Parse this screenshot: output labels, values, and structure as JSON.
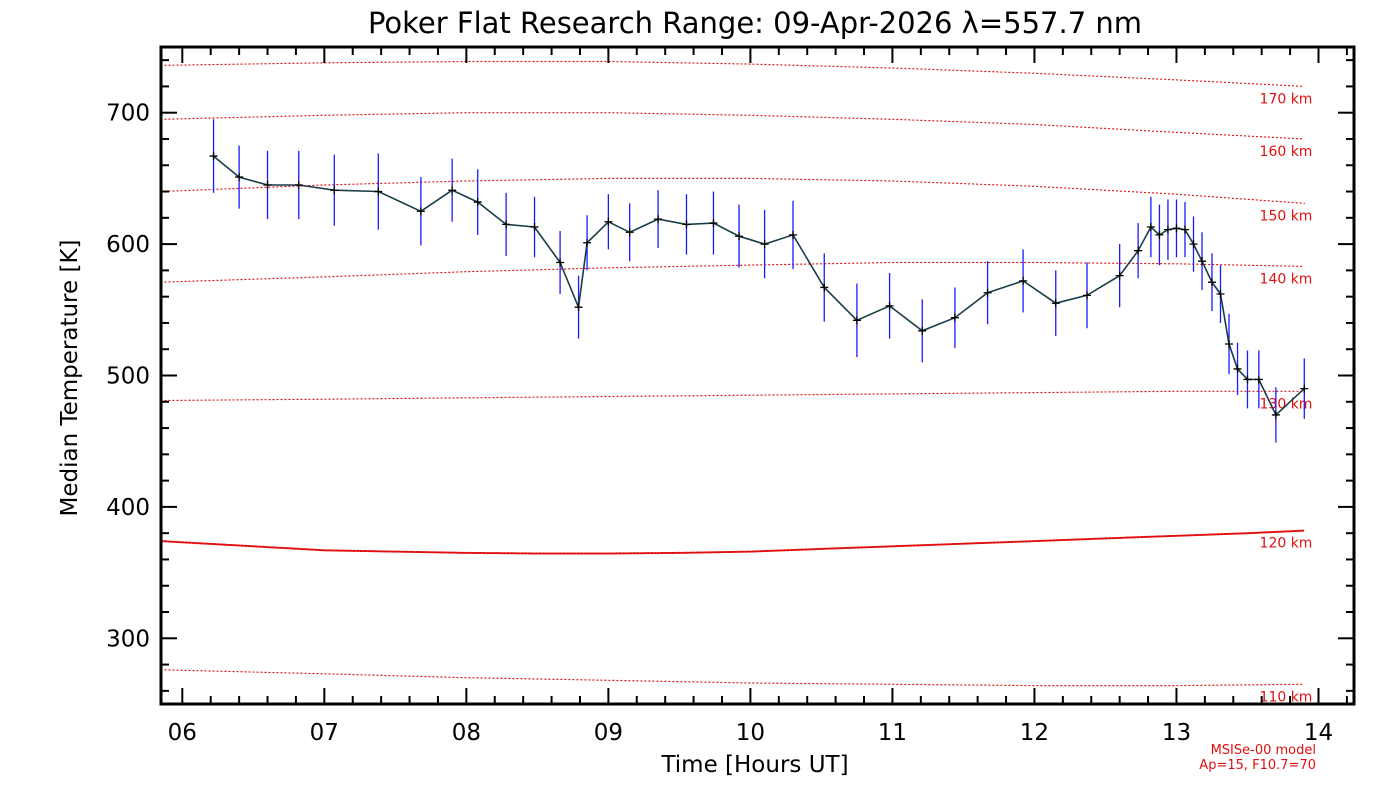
{
  "chart_data": {
    "type": "line",
    "title": "Poker Flat Research Range: 09-Apr-2026 λ=557.7 nm",
    "xlabel": "Time [Hours UT]",
    "ylabel": "Median Temperature [K]",
    "xlim": [
      5.85,
      14.25
    ],
    "ylim": [
      250,
      750
    ],
    "x_ticks": [
      6,
      7,
      8,
      9,
      10,
      11,
      12,
      13,
      14
    ],
    "x_tick_labels": [
      "06",
      "07",
      "08",
      "09",
      "10",
      "11",
      "12",
      "13",
      "14"
    ],
    "y_ticks": [
      300,
      400,
      500,
      600,
      700
    ],
    "y_tick_labels": [
      "300",
      "400",
      "500",
      "600",
      "700"
    ],
    "series": [
      {
        "name": "Median Temperature",
        "color": "#1a3d4a",
        "errorbar_color": "#1a1aff",
        "x": [
          6.22,
          6.4,
          6.6,
          6.82,
          7.07,
          7.38,
          7.68,
          7.9,
          8.08,
          8.28,
          8.48,
          8.66,
          8.79,
          8.85,
          9.0,
          9.15,
          9.35,
          9.55,
          9.74,
          9.92,
          10.1,
          10.3,
          10.52,
          10.75,
          10.98,
          11.21,
          11.44,
          11.67,
          11.92,
          12.15,
          12.37,
          12.6,
          12.73,
          12.82,
          12.88,
          12.94,
          13.0,
          13.06,
          13.12,
          13.18,
          13.25,
          13.31,
          13.37,
          13.43,
          13.5,
          13.58,
          13.7,
          13.9
        ],
        "y": [
          667,
          651,
          645,
          645,
          641,
          640,
          625,
          641,
          632,
          615,
          613,
          586,
          552,
          601,
          617,
          609,
          619,
          615,
          616,
          606,
          600,
          607,
          567,
          542,
          553,
          534,
          544,
          563,
          572,
          555,
          561,
          576,
          595,
          613,
          607,
          611,
          612,
          611,
          600,
          587,
          571,
          562,
          524,
          505,
          497,
          497,
          470,
          490
        ],
        "errors": [
          28,
          24,
          26,
          26,
          27,
          29,
          26,
          24,
          25,
          24,
          23,
          24,
          24,
          21,
          21,
          22,
          22,
          23,
          24,
          24,
          26,
          26,
          26,
          28,
          25,
          24,
          23,
          24,
          24,
          25,
          25,
          24,
          21,
          23,
          23,
          23,
          22,
          21,
          21,
          22,
          22,
          22,
          23,
          20,
          22,
          22,
          21,
          23
        ]
      }
    ],
    "model_curves": [
      {
        "name": "110 km",
        "label": "110 km",
        "x": [
          5.85,
          7.0,
          8.0,
          9.0,
          10.0,
          11.0,
          12.0,
          13.0,
          13.9
        ],
        "y": [
          276,
          273,
          270,
          268,
          266,
          265,
          264,
          264,
          265
        ],
        "dense": false
      },
      {
        "name": "120 km",
        "label": "120 km",
        "x": [
          5.85,
          6.5,
          7.0,
          7.5,
          8.0,
          8.5,
          9.0,
          9.5,
          10.0,
          10.5,
          11.0,
          11.5,
          12.0,
          12.5,
          13.0,
          13.5,
          13.9
        ],
        "y": [
          374,
          370,
          367,
          366,
          365,
          364.5,
          364.5,
          365,
          366,
          368,
          370,
          372,
          374,
          376,
          378,
          380,
          382
        ],
        "dense": true
      },
      {
        "name": "130 km",
        "label": "130 km",
        "x": [
          5.85,
          7.0,
          8.0,
          9.0,
          10.0,
          11.0,
          12.0,
          13.0,
          13.9
        ],
        "y": [
          481,
          482,
          483,
          484,
          485,
          486,
          487,
          488,
          488
        ],
        "dense": false
      },
      {
        "name": "140 km",
        "label": "140 km",
        "x": [
          5.85,
          7.0,
          8.0,
          9.0,
          10.0,
          11.0,
          12.0,
          13.0,
          13.9
        ],
        "y": [
          571,
          575,
          579,
          582,
          584,
          586,
          586,
          585,
          583
        ],
        "dense": false
      },
      {
        "name": "150 km",
        "label": "150 km",
        "x": [
          5.85,
          7.0,
          8.0,
          9.0,
          10.0,
          11.0,
          12.0,
          13.0,
          13.9
        ],
        "y": [
          640,
          645,
          648,
          650,
          650,
          648,
          644,
          638,
          631
        ],
        "dense": false
      },
      {
        "name": "160 km",
        "label": "160 km",
        "x": [
          5.85,
          7.0,
          8.0,
          9.0,
          10.0,
          11.0,
          12.0,
          13.0,
          13.9
        ],
        "y": [
          695,
          698,
          700,
          700,
          698,
          695,
          691,
          685,
          680
        ],
        "dense": false
      },
      {
        "name": "170 km",
        "label": "170 km",
        "x": [
          5.85,
          7.0,
          8.0,
          9.0,
          10.0,
          11.0,
          12.0,
          13.0,
          13.9
        ],
        "y": [
          736,
          738,
          739,
          739,
          737,
          734,
          730,
          725,
          720
        ],
        "dense": false
      }
    ],
    "model_color": "#e01010",
    "model_note": [
      "MSISe-00 model",
      "Ap=15, F10.7=70"
    ],
    "grid": false,
    "legend": "none"
  }
}
